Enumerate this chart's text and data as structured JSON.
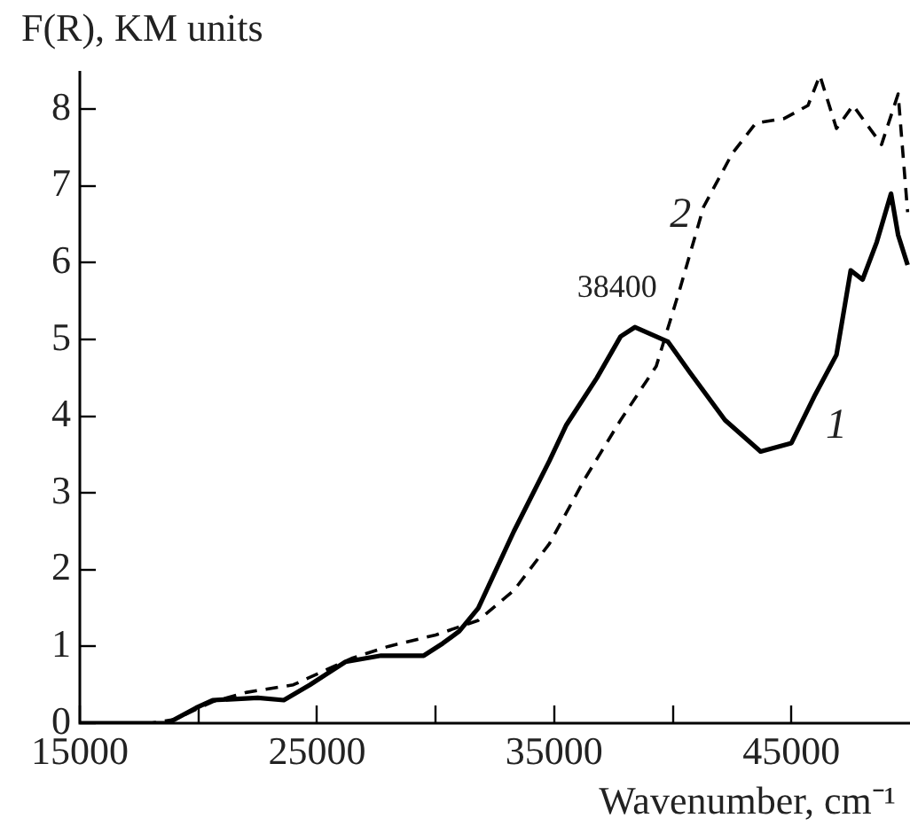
{
  "chart_data": {
    "type": "line",
    "xlabel": "Wavenumber, cm⁻¹",
    "ylabel": "F(R), KM units",
    "xlim": [
      15000,
      50000
    ],
    "ylim": [
      0,
      8.5
    ],
    "xticks": [
      15000,
      {
        "value": 20000,
        "label": null
      },
      25000,
      {
        "value": 30000,
        "label": null
      },
      35000,
      {
        "value": 40000,
        "label": null
      },
      45000
    ],
    "yticks": [
      0,
      1,
      2,
      3,
      4,
      5,
      6,
      7,
      8
    ],
    "grid": false,
    "legend": false,
    "marker": "none",
    "series": [
      {
        "color": "#000000",
        "line_style": "solid",
        "x": [
          15000,
          18000,
          18700,
          19900,
          20600,
          22500,
          23600,
          24700,
          26200,
          27700,
          29500,
          30300,
          31000,
          31800,
          33300,
          34800,
          35500,
          36800,
          37800,
          38400,
          39800,
          40700,
          42200,
          43700,
          45000,
          46000,
          46900,
          47500,
          48000,
          48600,
          49200,
          49500,
          49900
        ],
        "values": [
          0,
          0,
          0,
          0.2,
          0.3,
          0.33,
          0.3,
          0.5,
          0.8,
          0.88,
          0.88,
          1.04,
          1.2,
          1.5,
          2.5,
          3.42,
          3.88,
          4.5,
          5.04,
          5.16,
          4.97,
          4.58,
          3.95,
          3.54,
          3.65,
          4.28,
          4.8,
          5.9,
          5.78,
          6.27,
          6.9,
          6.36,
          5.97
        ]
      },
      {
        "color": "#000000",
        "line_style": "dashed",
        "x": [
          15000,
          18000,
          19000,
          20600,
          22000,
          24000,
          26500,
          28000,
          30000,
          31800,
          33300,
          34800,
          36300,
          37800,
          39300,
          40300,
          41300,
          42500,
          43500,
          44700,
          45700,
          46200,
          46900,
          47600,
          48800,
          49500,
          49900
        ],
        "values": [
          0,
          0,
          0.05,
          0.28,
          0.4,
          0.5,
          0.85,
          1.0,
          1.15,
          1.34,
          1.73,
          2.34,
          3.19,
          3.95,
          4.65,
          5.66,
          6.73,
          7.42,
          7.82,
          7.88,
          8.05,
          8.44,
          7.75,
          8.05,
          7.54,
          8.2,
          6.66
        ]
      }
    ],
    "annotations": [
      {
        "text": "38400",
        "x": 38400,
        "y": 5.16
      },
      {
        "text": "1",
        "x": 46000,
        "y": 4.28
      },
      {
        "text": "2",
        "x": 41300,
        "y": 6.73
      }
    ]
  }
}
